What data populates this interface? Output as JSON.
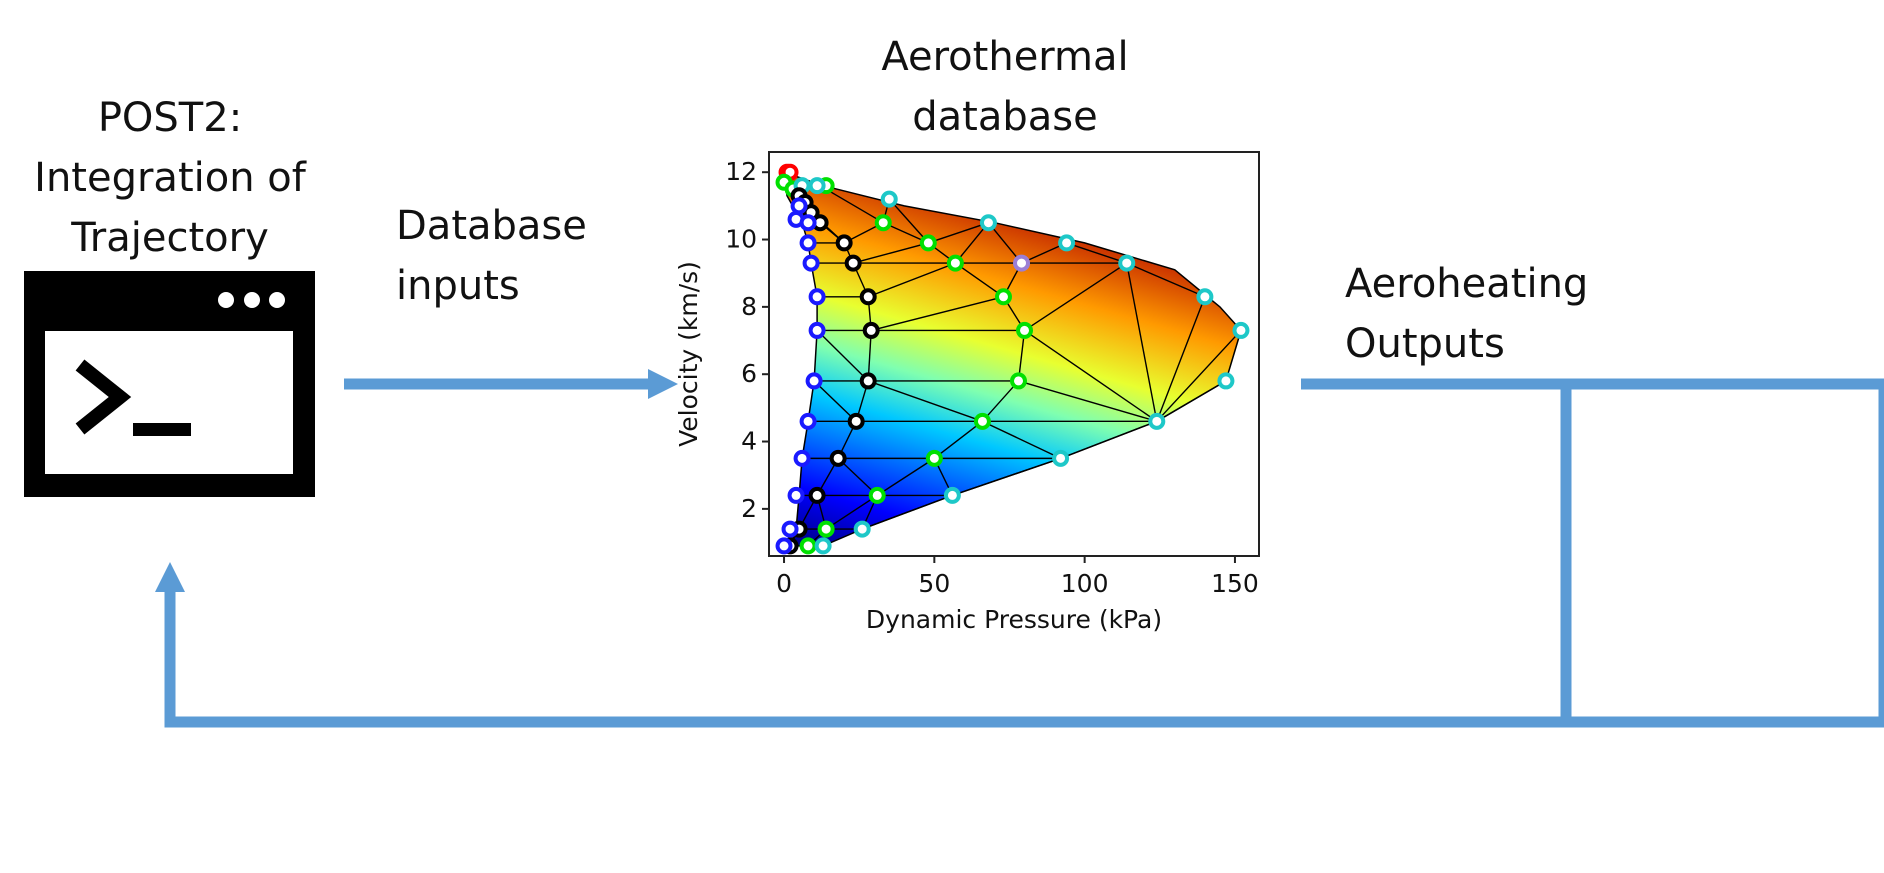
{
  "left_block": {
    "title_lines": [
      "POST2:",
      "Integration of",
      "Trajectory"
    ],
    "icon": "terminal-window-icon"
  },
  "arrow_in": {
    "label_lines": [
      "Database",
      "inputs"
    ]
  },
  "center_block": {
    "title_lines": [
      "Aerothermal",
      "database"
    ]
  },
  "arrow_out": {
    "label_lines": [
      "Aeroheating",
      "Outputs"
    ]
  },
  "colors": {
    "arrow": "#5b9bd5",
    "colormap": [
      "#00007f",
      "#0000ff",
      "#00ffff",
      "#7fff7f",
      "#ffff00",
      "#ff7f00",
      "#cc0000"
    ]
  },
  "chart_data": {
    "type": "scatter",
    "xlabel": "Dynamic Pressure (kPa)",
    "ylabel": "Velocity (km/s)",
    "xlim": [
      -5,
      158
    ],
    "ylim": [
      0.6,
      12.6
    ],
    "xticks": [
      0,
      50,
      100,
      150
    ],
    "yticks": [
      2,
      4,
      6,
      8,
      10,
      12
    ],
    "boundary": [
      [
        0,
        12
      ],
      [
        13,
        11.6
      ],
      [
        40,
        11
      ],
      [
        70,
        10.5
      ],
      [
        100,
        9.9
      ],
      [
        130,
        9.1
      ],
      [
        145,
        8
      ],
      [
        152,
        7.3
      ],
      [
        147,
        5.8
      ],
      [
        124,
        4.6
      ],
      [
        92,
        3.5
      ],
      [
        56,
        2.4
      ],
      [
        26,
        1.4
      ],
      [
        13,
        0.9
      ],
      [
        2,
        0.9
      ],
      [
        4,
        1.4
      ],
      [
        5,
        2.4
      ],
      [
        6,
        3.5
      ],
      [
        8,
        4.6
      ],
      [
        10,
        5.8
      ],
      [
        11,
        7.3
      ],
      [
        11,
        8.3
      ],
      [
        9,
        9.3
      ],
      [
        8,
        9.9
      ],
      [
        6,
        10.5
      ],
      [
        1,
        11.3
      ],
      [
        0,
        12
      ]
    ],
    "points": [
      {
        "x": 1,
        "y": 12,
        "c": "red"
      },
      {
        "x": 2,
        "y": 12,
        "c": "red"
      },
      {
        "x": 0,
        "y": 11.7,
        "c": "green"
      },
      {
        "x": 3,
        "y": 11.5,
        "c": "green"
      },
      {
        "x": 14,
        "y": 11.6,
        "c": "green"
      },
      {
        "x": 6,
        "y": 11.6,
        "c": "cyan"
      },
      {
        "x": 11,
        "y": 11.6,
        "c": "cyan"
      },
      {
        "x": 35,
        "y": 11.2,
        "c": "cyan"
      },
      {
        "x": 5,
        "y": 11.3,
        "c": "black"
      },
      {
        "x": 7,
        "y": 11.1,
        "c": "black"
      },
      {
        "x": 9,
        "y": 10.8,
        "c": "black"
      },
      {
        "x": 12,
        "y": 10.5,
        "c": "black"
      },
      {
        "x": 20,
        "y": 9.9,
        "c": "black"
      },
      {
        "x": 23,
        "y": 9.3,
        "c": "black"
      },
      {
        "x": 28,
        "y": 8.3,
        "c": "black"
      },
      {
        "x": 29,
        "y": 7.3,
        "c": "black"
      },
      {
        "x": 28,
        "y": 5.8,
        "c": "black"
      },
      {
        "x": 24,
        "y": 4.6,
        "c": "black"
      },
      {
        "x": 18,
        "y": 3.5,
        "c": "black"
      },
      {
        "x": 11,
        "y": 2.4,
        "c": "black"
      },
      {
        "x": 5,
        "y": 1.4,
        "c": "black"
      },
      {
        "x": 2,
        "y": 0.9,
        "c": "black"
      },
      {
        "x": 5,
        "y": 11
      },
      {
        "x": 4,
        "y": 10.6,
        "c": "blue"
      },
      {
        "x": 8,
        "y": 10.5,
        "c": "blue"
      },
      {
        "x": 8,
        "y": 9.9,
        "c": "blue"
      },
      {
        "x": 9,
        "y": 9.3,
        "c": "blue"
      },
      {
        "x": 11,
        "y": 8.3,
        "c": "blue"
      },
      {
        "x": 11,
        "y": 7.3,
        "c": "blue"
      },
      {
        "x": 10,
        "y": 5.8,
        "c": "blue"
      },
      {
        "x": 8,
        "y": 4.6,
        "c": "blue"
      },
      {
        "x": 6,
        "y": 3.5,
        "c": "blue"
      },
      {
        "x": 4,
        "y": 2.4,
        "c": "blue"
      },
      {
        "x": 2,
        "y": 1.4,
        "c": "blue"
      },
      {
        "x": 0,
        "y": 0.9,
        "c": "blue"
      },
      {
        "x": 33,
        "y": 10.5,
        "c": "green"
      },
      {
        "x": 48,
        "y": 9.9,
        "c": "green"
      },
      {
        "x": 57,
        "y": 9.3,
        "c": "green"
      },
      {
        "x": 73,
        "y": 8.3,
        "c": "green"
      },
      {
        "x": 80,
        "y": 7.3,
        "c": "green"
      },
      {
        "x": 78,
        "y": 5.8,
        "c": "green"
      },
      {
        "x": 66,
        "y": 4.6,
        "c": "green"
      },
      {
        "x": 50,
        "y": 3.5,
        "c": "green"
      },
      {
        "x": 31,
        "y": 2.4,
        "c": "green"
      },
      {
        "x": 14,
        "y": 1.4,
        "c": "green"
      },
      {
        "x": 8,
        "y": 0.9,
        "c": "green"
      },
      {
        "x": 68,
        "y": 10.5,
        "c": "cyan"
      },
      {
        "x": 94,
        "y": 9.9,
        "c": "cyan"
      },
      {
        "x": 114,
        "y": 9.3,
        "c": "cyan"
      },
      {
        "x": 140,
        "y": 8.3,
        "c": "cyan"
      },
      {
        "x": 152,
        "y": 7.3,
        "c": "cyan"
      },
      {
        "x": 147,
        "y": 5.8,
        "c": "cyan"
      },
      {
        "x": 124,
        "y": 4.6,
        "c": "cyan"
      },
      {
        "x": 92,
        "y": 3.5,
        "c": "cyan"
      },
      {
        "x": 56,
        "y": 2.4,
        "c": "cyan"
      },
      {
        "x": 26,
        "y": 1.4,
        "c": "cyan"
      },
      {
        "x": 13,
        "y": 0.9,
        "c": "cyan"
      },
      {
        "x": 79,
        "y": 9.3,
        "c": "violet"
      }
    ],
    "edges": [
      [
        [
          12,
          11.6
        ],
        [
          33,
          10.5
        ]
      ],
      [
        [
          35,
          11.2
        ],
        [
          33,
          10.5
        ]
      ],
      [
        [
          35,
          11.2
        ],
        [
          48,
          9.9
        ]
      ],
      [
        [
          33,
          10.5
        ],
        [
          48,
          9.9
        ]
      ],
      [
        [
          33,
          10.5
        ],
        [
          20,
          9.9
        ]
      ],
      [
        [
          20,
          9.9
        ],
        [
          23,
          9.3
        ]
      ],
      [
        [
          23,
          9.3
        ],
        [
          48,
          9.9
        ]
      ],
      [
        [
          48,
          9.9
        ],
        [
          57,
          9.3
        ]
      ],
      [
        [
          57,
          9.3
        ],
        [
          68,
          10.5
        ]
      ],
      [
        [
          68,
          10.5
        ],
        [
          48,
          9.9
        ]
      ],
      [
        [
          68,
          10.5
        ],
        [
          79,
          9.3
        ]
      ],
      [
        [
          57,
          9.3
        ],
        [
          79,
          9.3
        ]
      ],
      [
        [
          79,
          9.3
        ],
        [
          94,
          9.9
        ]
      ],
      [
        [
          94,
          9.9
        ],
        [
          114,
          9.3
        ]
      ],
      [
        [
          79,
          9.3
        ],
        [
          114,
          9.3
        ]
      ],
      [
        [
          79,
          9.3
        ],
        [
          73,
          8.3
        ]
      ],
      [
        [
          57,
          9.3
        ],
        [
          73,
          8.3
        ]
      ],
      [
        [
          57,
          9.3
        ],
        [
          28,
          8.3
        ]
      ],
      [
        [
          23,
          9.3
        ],
        [
          28,
          8.3
        ]
      ],
      [
        [
          23,
          9.3
        ],
        [
          57,
          9.3
        ]
      ],
      [
        [
          73,
          8.3
        ],
        [
          80,
          7.3
        ]
      ],
      [
        [
          73,
          8.3
        ],
        [
          29,
          7.3
        ]
      ],
      [
        [
          28,
          8.3
        ],
        [
          29,
          7.3
        ]
      ],
      [
        [
          28,
          8.3
        ],
        [
          11,
          8.3
        ]
      ],
      [
        [
          29,
          7.3
        ],
        [
          11,
          7.3
        ]
      ],
      [
        [
          80,
          7.3
        ],
        [
          114,
          9.3
        ]
      ],
      [
        [
          114,
          9.3
        ],
        [
          140,
          8.3
        ]
      ],
      [
        [
          114,
          9.3
        ],
        [
          124,
          4.6
        ]
      ],
      [
        [
          140,
          8.3
        ],
        [
          124,
          4.6
        ]
      ],
      [
        [
          152,
          7.3
        ],
        [
          124,
          4.6
        ]
      ],
      [
        [
          147,
          5.8
        ],
        [
          124,
          4.6
        ]
      ],
      [
        [
          80,
          7.3
        ],
        [
          124,
          4.6
        ]
      ],
      [
        [
          29,
          7.3
        ],
        [
          80,
          7.3
        ]
      ],
      [
        [
          29,
          7.3
        ],
        [
          28,
          5.8
        ]
      ],
      [
        [
          28,
          5.8
        ],
        [
          78,
          5.8
        ]
      ],
      [
        [
          80,
          7.3
        ],
        [
          78,
          5.8
        ]
      ],
      [
        [
          78,
          5.8
        ],
        [
          124,
          4.6
        ]
      ],
      [
        [
          78,
          5.8
        ],
        [
          66,
          4.6
        ]
      ],
      [
        [
          66,
          4.6
        ],
        [
          124,
          4.6
        ]
      ],
      [
        [
          66,
          4.6
        ],
        [
          92,
          3.5
        ]
      ],
      [
        [
          124,
          4.6
        ],
        [
          92,
          3.5
        ]
      ],
      [
        [
          66,
          4.6
        ],
        [
          50,
          3.5
        ]
      ],
      [
        [
          28,
          5.8
        ],
        [
          24,
          4.6
        ]
      ],
      [
        [
          24,
          4.6
        ],
        [
          66,
          4.6
        ]
      ],
      [
        [
          28,
          5.8
        ],
        [
          66,
          4.6
        ]
      ],
      [
        [
          24,
          4.6
        ],
        [
          18,
          3.5
        ]
      ],
      [
        [
          18,
          3.5
        ],
        [
          50,
          3.5
        ]
      ],
      [
        [
          50,
          3.5
        ],
        [
          92,
          3.5
        ]
      ],
      [
        [
          50,
          3.5
        ],
        [
          56,
          2.4
        ]
      ],
      [
        [
          92,
          3.5
        ],
        [
          56,
          2.4
        ]
      ],
      [
        [
          50,
          3.5
        ],
        [
          31,
          2.4
        ]
      ],
      [
        [
          31,
          2.4
        ],
        [
          56,
          2.4
        ]
      ],
      [
        [
          18,
          3.5
        ],
        [
          31,
          2.4
        ]
      ],
      [
        [
          18,
          3.5
        ],
        [
          11,
          2.4
        ]
      ],
      [
        [
          11,
          2.4
        ],
        [
          31,
          2.4
        ]
      ],
      [
        [
          31,
          2.4
        ],
        [
          26,
          1.4
        ]
      ],
      [
        [
          56,
          2.4
        ],
        [
          26,
          1.4
        ]
      ],
      [
        [
          11,
          2.4
        ],
        [
          14,
          1.4
        ]
      ],
      [
        [
          14,
          1.4
        ],
        [
          26,
          1.4
        ]
      ],
      [
        [
          31,
          2.4
        ],
        [
          14,
          1.4
        ]
      ],
      [
        [
          11,
          2.4
        ],
        [
          5,
          1.4
        ]
      ],
      [
        [
          5,
          1.4
        ],
        [
          14,
          1.4
        ]
      ],
      [
        [
          14,
          1.4
        ],
        [
          8,
          0.9
        ]
      ],
      [
        [
          14,
          1.4
        ],
        [
          13,
          0.9
        ]
      ],
      [
        [
          5,
          1.4
        ],
        [
          2,
          0.9
        ]
      ],
      [
        [
          10,
          5.8
        ],
        [
          24,
          4.6
        ]
      ],
      [
        [
          10,
          5.8
        ],
        [
          28,
          5.8
        ]
      ],
      [
        [
          8,
          4.6
        ],
        [
          24,
          4.6
        ]
      ],
      [
        [
          6,
          3.5
        ],
        [
          18,
          3.5
        ]
      ],
      [
        [
          4,
          2.4
        ],
        [
          11,
          2.4
        ]
      ],
      [
        [
          11,
          7.3
        ],
        [
          28,
          5.8
        ]
      ],
      [
        [
          9,
          9.3
        ],
        [
          23,
          9.3
        ]
      ],
      [
        [
          8,
          9.9
        ],
        [
          20,
          9.9
        ]
      ],
      [
        [
          12,
          10.5
        ],
        [
          20,
          9.9
        ]
      ],
      [
        [
          9,
          10.8
        ],
        [
          20,
          9.9
        ]
      ]
    ]
  }
}
